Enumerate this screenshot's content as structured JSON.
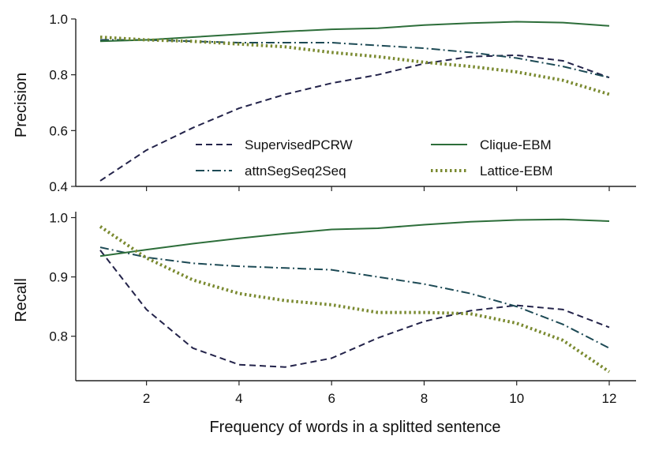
{
  "chart_data": {
    "type": "line",
    "xlabel": "Frequency of words in a splitted sentence",
    "x": [
      1,
      2,
      3,
      4,
      5,
      6,
      7,
      8,
      9,
      10,
      11,
      12
    ],
    "xticks": [
      2,
      4,
      6,
      8,
      10,
      12
    ],
    "legend_position": "bottom-right of top panel",
    "grid": false,
    "panels": [
      {
        "ylabel": "Precision",
        "ylim": [
          0.4,
          1.0
        ],
        "yticks": [
          0.4,
          0.6,
          0.8,
          1.0
        ],
        "ytick_labels": [
          "0.4",
          "0.6",
          "0.8",
          "1.0"
        ],
        "series": [
          {
            "name": "SupervisedPCRW",
            "color": "#23234a",
            "dash": "dashed",
            "values": [
              0.42,
              0.53,
              0.61,
              0.68,
              0.73,
              0.77,
              0.8,
              0.84,
              0.865,
              0.87,
              0.85,
              0.79
            ]
          },
          {
            "name": "attnSegSeq2Seq",
            "color": "#1d4a55",
            "dash": "dashdot",
            "values": [
              0.925,
              0.925,
              0.92,
              0.915,
              0.915,
              0.915,
              0.905,
              0.895,
              0.88,
              0.86,
              0.83,
              0.79
            ]
          },
          {
            "name": "Clique-EBM",
            "color": "#2d6e3a",
            "dash": "solid",
            "values": [
              0.92,
              0.925,
              0.935,
              0.945,
              0.955,
              0.963,
              0.967,
              0.978,
              0.985,
              0.99,
              0.987,
              0.975
            ]
          },
          {
            "name": "Lattice-EBM",
            "color": "#7a8a30",
            "dash": "dotted",
            "values": [
              0.935,
              0.925,
              0.92,
              0.91,
              0.9,
              0.88,
              0.865,
              0.845,
              0.83,
              0.81,
              0.78,
              0.73
            ]
          }
        ]
      },
      {
        "ylabel": "Recall",
        "ylim": [
          0.725,
          1.01
        ],
        "yticks": [
          0.8,
          0.9,
          1.0
        ],
        "ytick_labels": [
          "0.8",
          "0.9",
          "1.0"
        ],
        "series": [
          {
            "name": "SupervisedPCRW",
            "color": "#23234a",
            "dash": "dashed",
            "values": [
              0.945,
              0.845,
              0.78,
              0.752,
              0.748,
              0.763,
              0.797,
              0.825,
              0.843,
              0.852,
              0.845,
              0.815
            ]
          },
          {
            "name": "attnSegSeq2Seq",
            "color": "#1d4a55",
            "dash": "dashdot",
            "values": [
              0.95,
              0.933,
              0.923,
              0.918,
              0.915,
              0.912,
              0.9,
              0.888,
              0.872,
              0.85,
              0.82,
              0.78
            ]
          },
          {
            "name": "Clique-EBM",
            "color": "#2d6e3a",
            "dash": "solid",
            "values": [
              0.935,
              0.946,
              0.956,
              0.965,
              0.973,
              0.98,
              0.982,
              0.988,
              0.993,
              0.996,
              0.997,
              0.994
            ]
          },
          {
            "name": "Lattice-EBM",
            "color": "#7a8a30",
            "dash": "dotted",
            "values": [
              0.985,
              0.932,
              0.895,
              0.872,
              0.86,
              0.853,
              0.84,
              0.84,
              0.838,
              0.822,
              0.793,
              0.74
            ]
          }
        ]
      }
    ]
  }
}
